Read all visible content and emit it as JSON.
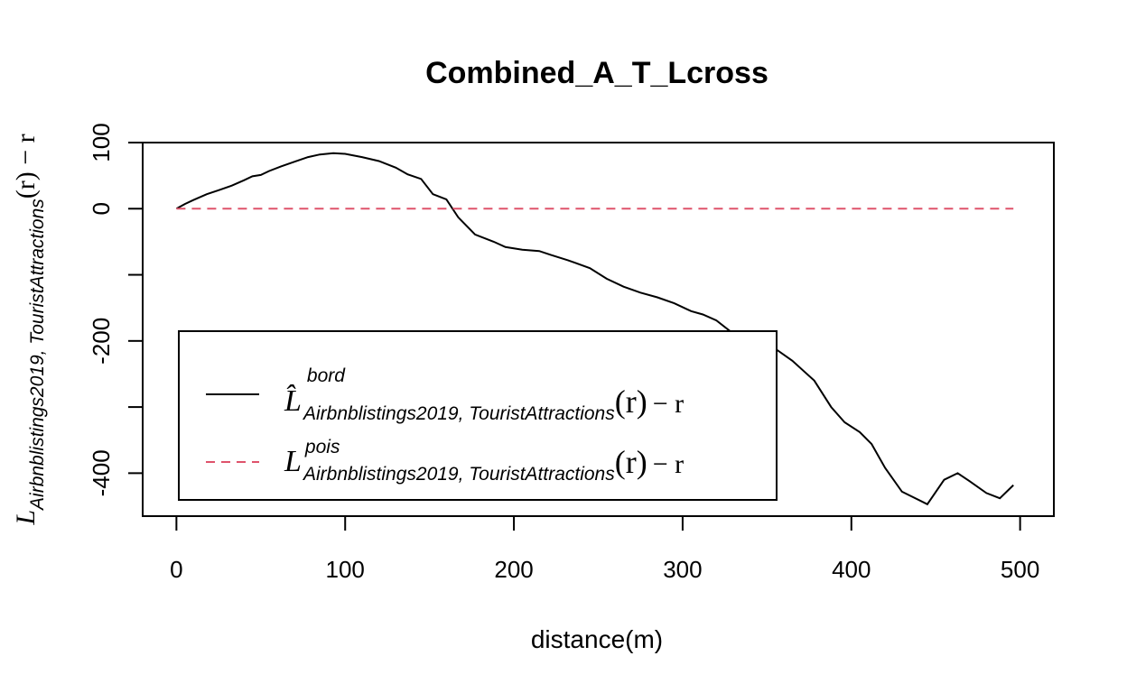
{
  "chart_data": {
    "type": "line",
    "title": "Combined_A_T_Lcross",
    "xlabel": "distance(m)",
    "ylabel": {
      "main": "L",
      "sub": "Airbnblistings2019, TouristAttractions",
      "tail": "(r) − r"
    },
    "xlim": [
      -20,
      520
    ],
    "ylim": [
      -465,
      100
    ],
    "x_ticks": [
      "0",
      "100",
      "200",
      "300",
      "400",
      "500"
    ],
    "x_tick_values": [
      0,
      100,
      200,
      300,
      400,
      500
    ],
    "y_ticks": [
      "100",
      "0",
      "",
      "-200",
      "",
      "-400"
    ],
    "y_tick_values": [
      100,
      0,
      -100,
      -200,
      -300,
      -400
    ],
    "grid": false,
    "legend_position": "bottom-left",
    "series": [
      {
        "legend": {
          "main": "L̂",
          "sup": "bord",
          "sub": "Airbnblistings2019, TouristAttractions",
          "tail": "(r)",
          "minus": "− r"
        },
        "color": "#000000",
        "dash": "solid",
        "x": [
          0,
          5,
          10,
          18,
          25,
          33,
          40,
          45,
          50,
          55,
          62,
          70,
          78,
          85,
          93,
          100,
          110,
          120,
          130,
          137,
          145,
          152,
          160,
          167,
          177,
          188,
          195,
          205,
          215,
          222,
          232,
          245,
          255,
          265,
          275,
          285,
          295,
          305,
          312,
          320,
          328,
          335,
          345,
          355,
          365,
          378,
          388,
          396,
          405,
          412,
          420,
          430,
          445,
          455,
          463,
          470,
          480,
          488,
          496
        ],
        "y": [
          0,
          7,
          13,
          22,
          28,
          35,
          43,
          49,
          51,
          57,
          64,
          71,
          78,
          82,
          84,
          83,
          78,
          72,
          62,
          52,
          45,
          22,
          14,
          -13,
          -39,
          -50,
          -58,
          -62,
          -64,
          -70,
          -78,
          -90,
          -106,
          -118,
          -127,
          -134,
          -143,
          -155,
          -160,
          -169,
          -185,
          -195,
          -202,
          -212,
          -230,
          -260,
          -300,
          -323,
          -338,
          -356,
          -392,
          -428,
          -447,
          -410,
          -400,
          -412,
          -430,
          -438,
          -418
        ]
      },
      {
        "legend": {
          "main": "L",
          "sup": "pois",
          "sub": "Airbnblistings2019, TouristAttractions",
          "tail": "(r)",
          "minus": "− r"
        },
        "color": "#df536b",
        "dash": "dashed",
        "x": [
          0,
          496
        ],
        "y": [
          0,
          0
        ]
      }
    ]
  }
}
